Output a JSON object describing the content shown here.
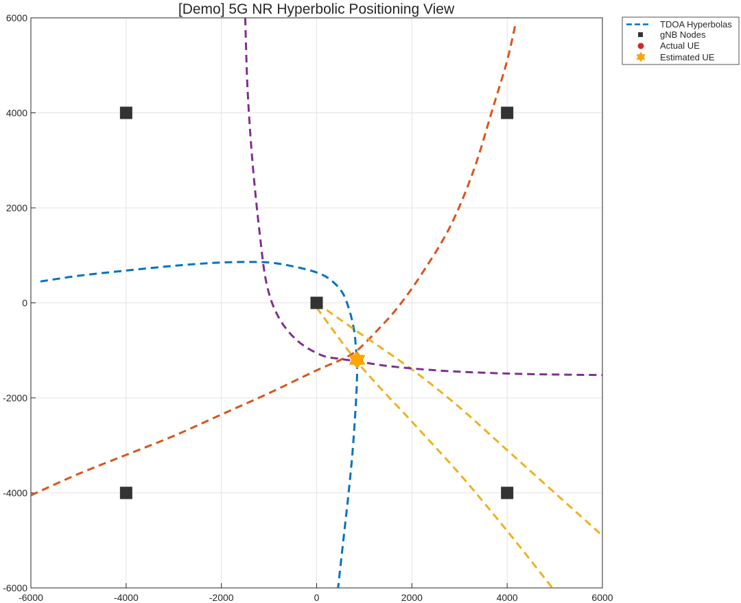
{
  "chart_data": {
    "type": "line",
    "title": "[Demo] 5G NR Hyperbolic Positioning View",
    "xlabel": "",
    "ylabel": "",
    "xlim": [
      -6000,
      6000
    ],
    "ylim": [
      -6000,
      6000
    ],
    "xticks": [
      -6000,
      -4000,
      -2000,
      0,
      2000,
      4000,
      6000
    ],
    "yticks": [
      -6000,
      -4000,
      -2000,
      0,
      2000,
      4000,
      6000
    ],
    "xtick_labels": [
      "-6000",
      "-4000",
      "-2000",
      "0",
      "2000",
      "4000",
      "6000"
    ],
    "ytick_labels": [
      "-6000",
      "-4000",
      "-2000",
      "0",
      "2000",
      "4000",
      "6000"
    ],
    "grid": true,
    "legend": {
      "placement": "outside-top-right",
      "entries": [
        "TDOA Hyperbolas",
        "gNB Nodes",
        "Actual UE",
        "Estimated UE"
      ]
    },
    "colors": {
      "blue": "#0072BD",
      "orange": "#D95319",
      "yellow": "#EDB120",
      "purple": "#7E2F8E",
      "node": "#333333",
      "actual_ue": "#D62728",
      "estimated_ue": "#FFA500"
    },
    "series": [
      {
        "name": "TDOA Hyperbolas",
        "color": "blue",
        "style": "dashed",
        "segments": [
          [
            [
              -5800,
              450
            ],
            [
              -5000,
              570
            ],
            [
              -4000,
              680
            ],
            [
              -3000,
              780
            ],
            [
              -2200,
              840
            ],
            [
              -1600,
              860
            ],
            [
              -1000,
              850
            ],
            [
              -500,
              770
            ],
            [
              0,
              640
            ],
            [
              300,
              480
            ],
            [
              550,
              200
            ],
            [
              700,
              -200
            ],
            [
              790,
              -600
            ],
            [
              830,
              -1000
            ],
            [
              850,
              -1300
            ],
            [
              840,
              -1800
            ],
            [
              800,
              -2500
            ],
            [
              740,
              -3300
            ],
            [
              650,
              -4200
            ],
            [
              560,
              -5000
            ],
            [
              450,
              -6000
            ]
          ]
        ]
      },
      {
        "name": "",
        "color": "orange",
        "style": "dashed",
        "segments": [
          [
            [
              -6000,
              -4050
            ],
            [
              -5000,
              -3600
            ],
            [
              -4000,
              -3200
            ],
            [
              -3000,
              -2800
            ],
            [
              -2000,
              -2350
            ],
            [
              -1000,
              -1900
            ],
            [
              0,
              -1420
            ],
            [
              500,
              -1200
            ],
            [
              850,
              -1000
            ],
            [
              1300,
              -550
            ],
            [
              1700,
              -100
            ],
            [
              2200,
              600
            ],
            [
              2800,
              1600
            ],
            [
              3300,
              2800
            ],
            [
              3700,
              4100
            ],
            [
              4000,
              5100
            ],
            [
              4180,
              5900
            ]
          ]
        ]
      },
      {
        "name": "",
        "color": "yellow",
        "style": "dashed",
        "segments": [
          [
            [
              0,
              0
            ],
            [
              850,
              -600
            ],
            [
              2000,
              -1400
            ],
            [
              3000,
              -2200
            ],
            [
              4000,
              -3100
            ],
            [
              5000,
              -4000
            ],
            [
              6000,
              -4900
            ]
          ],
          [
            [
              0,
              -100
            ],
            [
              900,
              -1300
            ],
            [
              2000,
              -2500
            ],
            [
              3000,
              -3600
            ],
            [
              4000,
              -4800
            ],
            [
              4950,
              -6000
            ]
          ]
        ]
      },
      {
        "name": "",
        "color": "purple",
        "style": "dashed",
        "segments": [
          [
            [
              -1500,
              6000
            ],
            [
              -1450,
              4500
            ],
            [
              -1350,
              3000
            ],
            [
              -1200,
              1500
            ],
            [
              -1050,
              400
            ],
            [
              -800,
              -300
            ],
            [
              -400,
              -800
            ],
            [
              100,
              -1100
            ],
            [
              500,
              -1180
            ],
            [
              850,
              -1230
            ],
            [
              1500,
              -1330
            ],
            [
              2500,
              -1420
            ],
            [
              3500,
              -1470
            ],
            [
              4500,
              -1500
            ],
            [
              6000,
              -1520
            ]
          ]
        ]
      }
    ],
    "gnb_nodes": [
      [
        -4000,
        4000
      ],
      [
        4000,
        4000
      ],
      [
        0,
        0
      ],
      [
        -4000,
        -4000
      ],
      [
        4000,
        -4000
      ]
    ],
    "actual_ue": [
      850,
      -1200
    ],
    "estimated_ue": [
      850,
      -1200
    ]
  }
}
